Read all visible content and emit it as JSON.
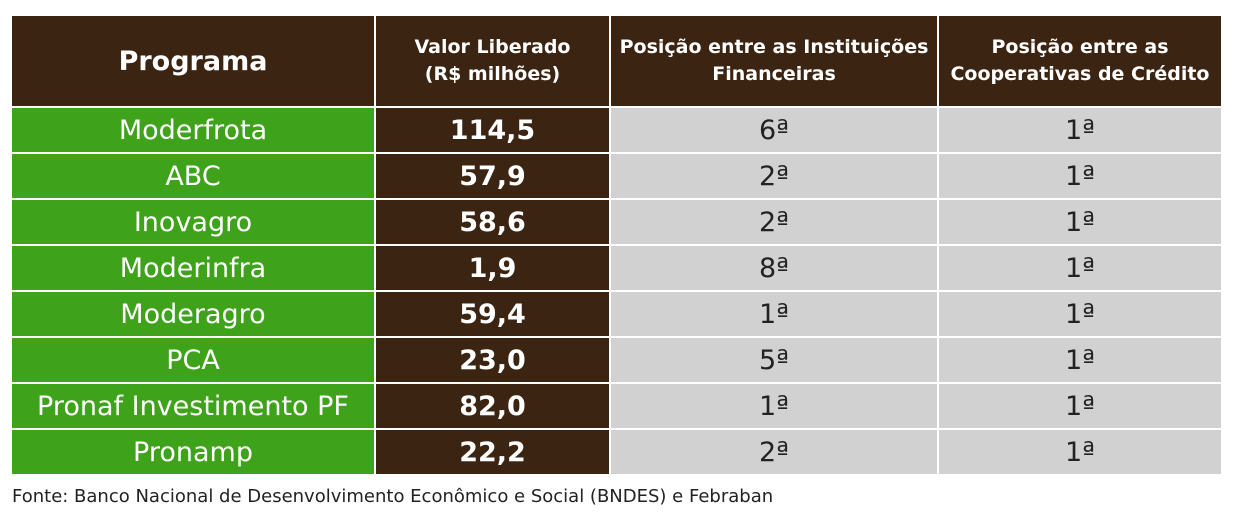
{
  "chart_data": {
    "type": "table",
    "columns": [
      "Programa",
      "Valor Liberado (R$ milhões)",
      "Posição entre as Instituições Financeiras",
      "Posição entre as Cooperativas de Crédito"
    ],
    "header_lines": {
      "programa": "Programa",
      "valor_1": "Valor Liberado",
      "valor_2": "(R$ milhões)",
      "inst_1": "Posição entre as Instituições",
      "inst_2": "Financeiras",
      "coop_1": "Posição entre as",
      "coop_2": "Cooperativas de Crédito"
    },
    "rows": [
      {
        "programa": "Moderfrota",
        "valor": "114,5",
        "inst": "6ª",
        "coop": "1ª"
      },
      {
        "programa": "ABC",
        "valor": "57,9",
        "inst": "2ª",
        "coop": "1ª"
      },
      {
        "programa": "Inovagro",
        "valor": "58,6",
        "inst": "2ª",
        "coop": "1ª"
      },
      {
        "programa": "Moderinfra",
        "valor": "1,9",
        "inst": "8ª",
        "coop": "1ª"
      },
      {
        "programa": "Moderagro",
        "valor": "59,4",
        "inst": "1ª",
        "coop": "1ª"
      },
      {
        "programa": "PCA",
        "valor": "23,0",
        "inst": "5ª",
        "coop": "1ª"
      },
      {
        "programa": "Pronaf Investimento PF",
        "valor": "82,0",
        "inst": "1ª",
        "coop": "1ª"
      },
      {
        "programa": "Pronamp",
        "valor": "22,2",
        "inst": "2ª",
        "coop": "1ª"
      }
    ],
    "source": "Fonte: Banco Nacional de Desenvolvimento  Econômico  e Social (BNDES) e Febraban"
  },
  "colors": {
    "header_bg": "#3b2412",
    "program_bg": "#3ea21a",
    "value_bg": "#3b2412",
    "rank_bg": "#d1d1d1"
  }
}
